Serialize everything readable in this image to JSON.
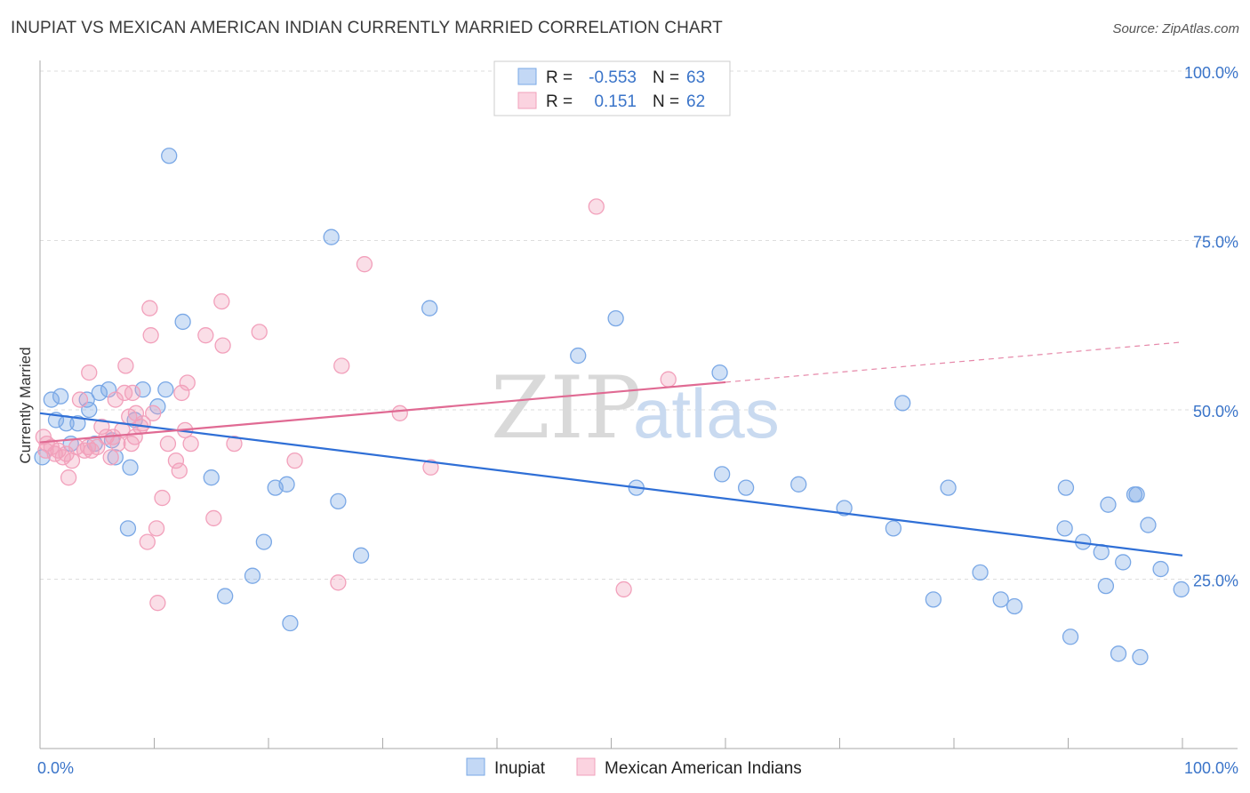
{
  "title": "INUPIAT VS MEXICAN AMERICAN INDIAN CURRENTLY MARRIED CORRELATION CHART",
  "source": "Source: ZipAtlas.com",
  "watermark": {
    "zip": "ZIP",
    "atlas": "atlas"
  },
  "legend": {
    "r_label": "R =",
    "n_label": "N =",
    "rows": [
      {
        "r": "-0.553",
        "n": "63"
      },
      {
        "r": "0.151",
        "n": "62"
      }
    ]
  },
  "chart_data": {
    "type": "scatter",
    "ylabel": "Currently Married",
    "xlim": [
      0,
      100
    ],
    "ylim": [
      0,
      100
    ],
    "x_tick_labels": [
      "0.0%",
      "100.0%"
    ],
    "y_ticks": [
      25,
      50,
      75,
      100
    ],
    "y_tick_labels": [
      "25.0%",
      "50.0%",
      "75.0%",
      "100.0%"
    ],
    "grid": "horizontal dashed",
    "legend_position": "top-center",
    "series": [
      {
        "name": "Inupiat",
        "color": "#7aa8e6",
        "line_color": "#2f6fd6",
        "trend": {
          "x": [
            0,
            100
          ],
          "y": [
            49.5,
            28.5
          ],
          "solid_until": 100
        },
        "points": [
          [
            0.2,
            43
          ],
          [
            1.0,
            51.5
          ],
          [
            1.4,
            48.5
          ],
          [
            1.8,
            52
          ],
          [
            2.3,
            48
          ],
          [
            2.7,
            45
          ],
          [
            3.3,
            48
          ],
          [
            4.1,
            51.5
          ],
          [
            4.3,
            50
          ],
          [
            4.8,
            45
          ],
          [
            5.2,
            52.5
          ],
          [
            6,
            53
          ],
          [
            6.3,
            45.5
          ],
          [
            6.6,
            43
          ],
          [
            7.7,
            32.5
          ],
          [
            7.9,
            41.5
          ],
          [
            8.3,
            48.5
          ],
          [
            9,
            53
          ],
          [
            10.3,
            50.5
          ],
          [
            11,
            53
          ],
          [
            11.3,
            87.5
          ],
          [
            12.5,
            63
          ],
          [
            15,
            40
          ],
          [
            16.2,
            22.5
          ],
          [
            18.6,
            25.5
          ],
          [
            19.6,
            30.5
          ],
          [
            20.6,
            38.5
          ],
          [
            21.6,
            39
          ],
          [
            21.9,
            18.5
          ],
          [
            25.5,
            75.5
          ],
          [
            26.1,
            36.5
          ],
          [
            28.1,
            28.5
          ],
          [
            34.1,
            65
          ],
          [
            47.1,
            58
          ],
          [
            50.4,
            63.5
          ],
          [
            52.2,
            38.5
          ],
          [
            59.5,
            55.5
          ],
          [
            59.7,
            40.5
          ],
          [
            61.8,
            38.5
          ],
          [
            66.4,
            39
          ],
          [
            70.4,
            35.5
          ],
          [
            74.7,
            32.5
          ],
          [
            75.5,
            51
          ],
          [
            78.2,
            22
          ],
          [
            79.5,
            38.5
          ],
          [
            82.3,
            26
          ],
          [
            84.1,
            22
          ],
          [
            85.3,
            21
          ],
          [
            89.7,
            32.5
          ],
          [
            89.8,
            38.5
          ],
          [
            90.2,
            16.5
          ],
          [
            91.3,
            30.5
          ],
          [
            92.9,
            29
          ],
          [
            93.3,
            24
          ],
          [
            93.5,
            36
          ],
          [
            94.4,
            14
          ],
          [
            94.8,
            27.5
          ],
          [
            95.8,
            37.5
          ],
          [
            96,
            37.5
          ],
          [
            96.3,
            13.5
          ],
          [
            97,
            33
          ],
          [
            98.1,
            26.5
          ],
          [
            99.9,
            23.5
          ]
        ]
      },
      {
        "name": "Mexican American Indians",
        "color": "#f2a0bb",
        "line_color": "#e06a93",
        "trend": {
          "x": [
            0,
            100
          ],
          "y": [
            45.2,
            60
          ],
          "solid_until": 60
        },
        "points": [
          [
            0.3,
            46
          ],
          [
            0.5,
            44
          ],
          [
            0.6,
            45
          ],
          [
            1,
            44.5
          ],
          [
            1.3,
            43.5
          ],
          [
            1.6,
            44
          ],
          [
            2,
            43
          ],
          [
            2.3,
            43.5
          ],
          [
            2.5,
            40
          ],
          [
            2.8,
            42.5
          ],
          [
            3.2,
            44.5
          ],
          [
            3.5,
            51.5
          ],
          [
            3.9,
            44
          ],
          [
            4.2,
            44.5
          ],
          [
            4.3,
            55.5
          ],
          [
            4.5,
            44
          ],
          [
            5,
            44.5
          ],
          [
            5.4,
            47.5
          ],
          [
            5.8,
            46
          ],
          [
            6.2,
            43
          ],
          [
            6.4,
            46
          ],
          [
            6.6,
            51.5
          ],
          [
            6.8,
            45
          ],
          [
            7.2,
            47
          ],
          [
            7.4,
            52.5
          ],
          [
            7.5,
            56.5
          ],
          [
            7.8,
            49
          ],
          [
            8,
            45
          ],
          [
            8.1,
            52.5
          ],
          [
            8.3,
            46
          ],
          [
            8.4,
            49.5
          ],
          [
            8.8,
            47.5
          ],
          [
            9,
            48
          ],
          [
            9.4,
            30.5
          ],
          [
            9.6,
            65
          ],
          [
            9.7,
            61
          ],
          [
            9.9,
            49.5
          ],
          [
            10.2,
            32.5
          ],
          [
            10.3,
            21.5
          ],
          [
            10.7,
            37
          ],
          [
            11.2,
            45
          ],
          [
            11.9,
            42.5
          ],
          [
            12.2,
            41
          ],
          [
            12.4,
            52.5
          ],
          [
            12.7,
            47
          ],
          [
            12.9,
            54
          ],
          [
            13.2,
            45
          ],
          [
            14.5,
            61
          ],
          [
            15.2,
            34
          ],
          [
            15.9,
            66
          ],
          [
            16,
            59.5
          ],
          [
            17,
            45
          ],
          [
            19.2,
            61.5
          ],
          [
            22.3,
            42.5
          ],
          [
            26.1,
            24.5
          ],
          [
            26.4,
            56.5
          ],
          [
            28.4,
            71.5
          ],
          [
            31.5,
            49.5
          ],
          [
            34.2,
            41.5
          ],
          [
            48.7,
            80
          ],
          [
            51.1,
            23.5
          ],
          [
            55,
            54.5
          ]
        ]
      }
    ]
  }
}
